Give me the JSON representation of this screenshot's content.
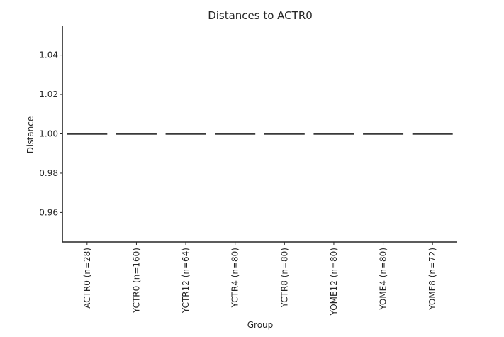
{
  "chart_data": {
    "type": "box",
    "title": "Distances to ACTR0",
    "xlabel": "Group",
    "ylabel": "Distance",
    "ylim": [
      0.945,
      1.055
    ],
    "yticks": [
      0.96,
      0.98,
      1.0,
      1.02,
      1.04
    ],
    "ytick_labels": [
      "0.96",
      "0.98",
      "1.00",
      "1.02",
      "1.04"
    ],
    "categories": [
      "ACTR0 (n=28)",
      "YCTR0 (n=160)",
      "YCTR12 (n=64)",
      "YCTR4 (n=80)",
      "YCTR8 (n=80)",
      "YOME12 (n=80)",
      "YOME4 (n=80)",
      "YOME8 (n=72)"
    ],
    "values": [
      1.0,
      1.0,
      1.0,
      1.0,
      1.0,
      1.0,
      1.0,
      1.0
    ],
    "grid": false,
    "colors": {
      "box": "#3a3a3a",
      "axis": "#262626",
      "background": "#ffffff"
    }
  }
}
